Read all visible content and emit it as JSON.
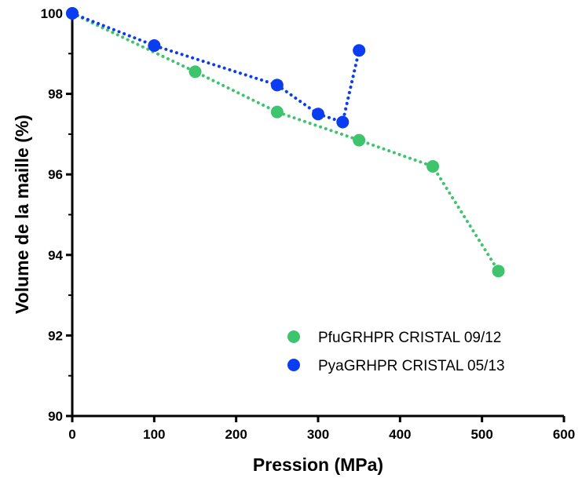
{
  "chart_data": {
    "type": "scatter",
    "title": "",
    "xlabel": "Pression (MPa)",
    "ylabel": "Volume de la maille (%)",
    "xlim": [
      0,
      600
    ],
    "ylim": [
      90,
      100
    ],
    "xticks": [
      "0",
      "100",
      "200",
      "300",
      "400",
      "500",
      "600"
    ],
    "yticks": [
      "90",
      "92",
      "94",
      "96",
      "98",
      "100"
    ],
    "grid": false,
    "legend_position": "bottom-right",
    "series": [
      {
        "name": "PfuGRHPR CRISTAL 09/12",
        "color": "#3ec46d",
        "x": [
          0,
          150,
          250,
          350,
          440,
          520
        ],
        "y": [
          100,
          98.55,
          97.55,
          96.85,
          96.2,
          93.6
        ]
      },
      {
        "name": "PyaGRHPR CRISTAL 05/13",
        "color": "#0a3df2",
        "x": [
          0,
          100,
          250,
          300,
          330,
          350
        ],
        "y": [
          100,
          99.2,
          98.22,
          97.5,
          97.3,
          99.08
        ]
      }
    ]
  }
}
